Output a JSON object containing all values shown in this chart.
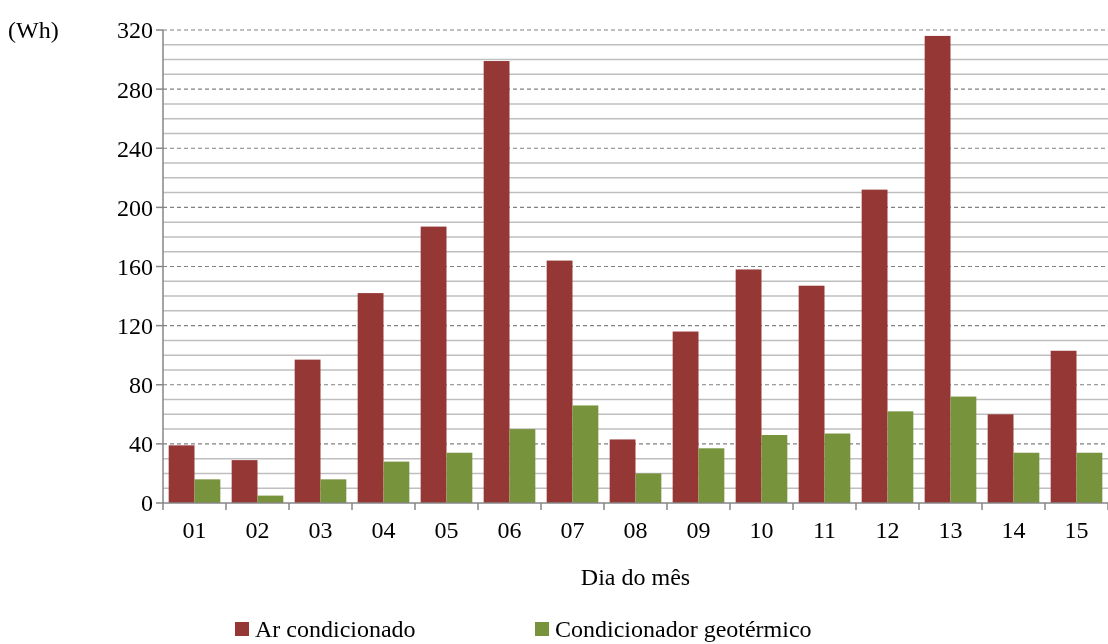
{
  "chart_data": {
    "type": "bar",
    "xlabel": "Dia do mês",
    "ylabel": "(Wh)",
    "categories": [
      "01",
      "02",
      "03",
      "04",
      "05",
      "06",
      "07",
      "08",
      "09",
      "10",
      "11",
      "12",
      "13",
      "14",
      "15"
    ],
    "series": [
      {
        "name": "Ar condicionado",
        "color": "#953735",
        "values": [
          39,
          29,
          97,
          142,
          187,
          299,
          164,
          43,
          116,
          158,
          147,
          212,
          316,
          60,
          103
        ]
      },
      {
        "name": "Condicionador geotérmico",
        "color": "#77933c",
        "values": [
          16,
          5,
          16,
          28,
          34,
          50,
          66,
          20,
          37,
          46,
          47,
          62,
          72,
          34,
          34
        ]
      }
    ],
    "ylim": [
      0,
      320
    ],
    "yticks": [
      0,
      40,
      80,
      120,
      160,
      200,
      240,
      280,
      320
    ],
    "grid": true,
    "legend": "bottom"
  }
}
